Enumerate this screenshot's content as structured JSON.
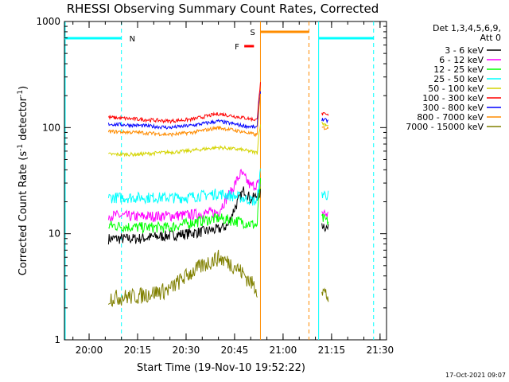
{
  "chart_data": {
    "type": "line",
    "title": "RHESSI Observing Summary Count Rates, Corrected",
    "xlabel": "Start Time (19-Nov-10 19:52:22)",
    "ylabel_main": "Corrected Count Rate (s",
    "ylabel_sup1": "-1",
    "ylabel_mid": " detector",
    "ylabel_sup2": "-1",
    "ylabel_end": ")",
    "y_scale": "log",
    "ylim": [
      1,
      1000
    ],
    "xlim": [
      "19:52:22",
      "21:32:00"
    ],
    "xticks": [
      "20:00",
      "20:15",
      "20:30",
      "20:45",
      "21:00",
      "21:15",
      "21:30"
    ],
    "yticks": [
      "1",
      "10",
      "100",
      "1000"
    ],
    "grid": false,
    "legend": {
      "position": "top-right",
      "header_line1": "Det 1,3,4,5,6,9,",
      "header_line2": "Att 0"
    },
    "series": [
      {
        "name": "3 - 6 keV",
        "color": "#000000",
        "points": [
          [
            "20:06",
            9
          ],
          [
            "20:15",
            9
          ],
          [
            "20:30",
            10
          ],
          [
            "20:40",
            11
          ],
          [
            "20:43",
            12
          ],
          [
            "20:46",
            20
          ],
          [
            "20:48",
            26
          ],
          [
            "20:50",
            21
          ],
          [
            "20:53",
            24
          ],
          [
            "21:12",
            12.5
          ],
          [
            "21:14",
            11
          ]
        ]
      },
      {
        "name": "6 - 12 keV",
        "color": "#ff00ff",
        "points": [
          [
            "20:06",
            15
          ],
          [
            "20:15",
            14.5
          ],
          [
            "20:30",
            15
          ],
          [
            "20:40",
            16
          ],
          [
            "20:44",
            25
          ],
          [
            "20:47",
            37
          ],
          [
            "20:50",
            28
          ],
          [
            "20:53",
            30
          ],
          [
            "21:12",
            16
          ],
          [
            "21:14",
            15
          ]
        ]
      },
      {
        "name": "12 - 25 keV",
        "color": "#00ff00",
        "points": [
          [
            "20:06",
            12
          ],
          [
            "20:15",
            11.5
          ],
          [
            "20:25",
            11.5
          ],
          [
            "20:33",
            13
          ],
          [
            "20:40",
            14
          ],
          [
            "20:47",
            13
          ],
          [
            "20:52",
            12
          ],
          [
            "20:53",
            30
          ],
          [
            "21:12",
            14
          ],
          [
            "21:14",
            13
          ]
        ]
      },
      {
        "name": "25 - 50 keV",
        "color": "#00ffff",
        "points": [
          [
            "20:06",
            22
          ],
          [
            "20:15",
            22
          ],
          [
            "20:30",
            22
          ],
          [
            "20:40",
            24
          ],
          [
            "20:47",
            22
          ],
          [
            "20:52",
            20
          ],
          [
            "20:53",
            38
          ],
          [
            "21:12",
            24
          ],
          [
            "21:14",
            23
          ]
        ]
      },
      {
        "name": "50 - 100 keV",
        "color": "#d4d400",
        "points": [
          [
            "20:06",
            56
          ],
          [
            "20:15",
            56
          ],
          [
            "20:30",
            60
          ],
          [
            "20:40",
            65
          ],
          [
            "20:47",
            62
          ],
          [
            "20:52",
            58
          ],
          [
            "20:53",
            110
          ],
          [
            "21:12",
            110
          ],
          [
            "21:14",
            105
          ]
        ]
      },
      {
        "name": "100 - 300 keV",
        "color": "#ff0000",
        "points": [
          [
            "20:06",
            125
          ],
          [
            "20:15",
            120
          ],
          [
            "20:25",
            115
          ],
          [
            "20:32",
            120
          ],
          [
            "20:40",
            135
          ],
          [
            "20:47",
            125
          ],
          [
            "20:52",
            118
          ],
          [
            "20:53",
            260
          ],
          [
            "21:12",
            135
          ],
          [
            "21:14",
            130
          ]
        ]
      },
      {
        "name": "300 - 800 keV",
        "color": "#0000ff",
        "points": [
          [
            "20:06",
            108
          ],
          [
            "20:15",
            105
          ],
          [
            "20:25",
            100
          ],
          [
            "20:32",
            105
          ],
          [
            "20:40",
            115
          ],
          [
            "20:47",
            105
          ],
          [
            "20:52",
            100
          ],
          [
            "20:53",
            220
          ],
          [
            "21:12",
            120
          ],
          [
            "21:14",
            115
          ]
        ]
      },
      {
        "name": "800 - 7000 keV",
        "color": "#ff8c00",
        "points": [
          [
            "20:06",
            92
          ],
          [
            "20:15",
            90
          ],
          [
            "20:25",
            86
          ],
          [
            "20:32",
            90
          ],
          [
            "20:40",
            100
          ],
          [
            "20:47",
            92
          ],
          [
            "20:52",
            85
          ],
          [
            "20:53",
            200
          ],
          [
            "21:12",
            100
          ],
          [
            "21:14",
            98
          ]
        ]
      },
      {
        "name": "7000 - 15000 keV",
        "color": "#808000",
        "points": [
          [
            "20:06",
            2.5
          ],
          [
            "20:15",
            2.6
          ],
          [
            "20:25",
            3
          ],
          [
            "20:30",
            4
          ],
          [
            "20:35",
            5
          ],
          [
            "20:40",
            6
          ],
          [
            "20:45",
            5
          ],
          [
            "20:50",
            3.5
          ],
          [
            "20:52",
            3
          ],
          [
            "21:12",
            3
          ],
          [
            "21:14",
            2.5
          ]
        ]
      }
    ],
    "annotations": {
      "night_label": "N",
      "flare_label": "F",
      "saa_label": "S"
    },
    "colors": {
      "night": "#00ffff",
      "flare": "#ff0000",
      "saa": "#ff8c00"
    },
    "footer": "17-Oct-2021 09:07"
  }
}
